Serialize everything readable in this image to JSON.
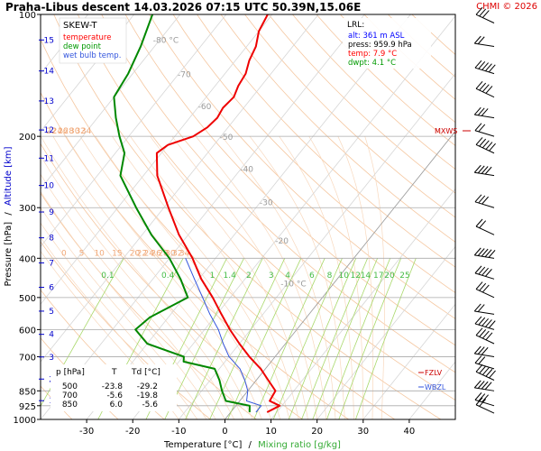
{
  "header": {
    "title": "Praha-Libus   descent   14.03.2026 07:15 UTC   50.39N,15.06E",
    "copyright": "CHMI © 2026"
  },
  "legend": {
    "title": "SKEW-T",
    "items": [
      {
        "label": "temperature",
        "color": "#ff0000"
      },
      {
        "label": "dew point",
        "color": "#009900"
      },
      {
        "label": "wet bulb temp.",
        "color": "#3355dd"
      }
    ]
  },
  "lrl": {
    "title": "LRL:",
    "alt": "alt: 361 m ASL",
    "press": "press: 959.9 hPa",
    "temp": "temp: 7.9 °C",
    "dwpt": "dwpt: 4.1 °C",
    "temp_color": "#ff0000",
    "dwpt_color": "#009900",
    "alt_color": "#0000ff"
  },
  "table": {
    "headers": [
      "p [hPa]",
      "T",
      "Td [°C]"
    ],
    "rows": [
      [
        "500",
        "-23.8",
        "-29.2"
      ],
      [
        "700",
        "-5.6",
        "-19.8"
      ],
      [
        "850",
        "6.0",
        "-5.6"
      ]
    ]
  },
  "axes": {
    "ylabel_pressure": "Pressure [hPa]",
    "ylabel_sep": "/",
    "ylabel_alt": "Altitude [km]",
    "xlabel_temp": "Temperature [°C]",
    "xlabel_sep": "/",
    "xlabel_mix": "Mixing ratio [g/kg]"
  },
  "markers": {
    "mxws": "MXWS",
    "fzlv": "FZLV",
    "wbzl": "WBZL"
  },
  "chart_data": {
    "type": "line",
    "xlim": [
      -40,
      50
    ],
    "ylim_hpa": [
      1000,
      100
    ],
    "y_scale": "log",
    "x_ticks": [
      -30,
      -20,
      -10,
      0,
      10,
      20,
      30,
      40
    ],
    "pressure_ticks": [
      100,
      200,
      300,
      400,
      500,
      600,
      700,
      850,
      925,
      1000
    ],
    "altitude_ticks_km": [
      1,
      2,
      3,
      4,
      5,
      6,
      7,
      8,
      9,
      10,
      11,
      12,
      13,
      14,
      15
    ],
    "mixing_ratio_labels": [
      "0.1",
      "0.4",
      "1",
      "1.4",
      "2",
      "3",
      "4",
      "6",
      "8",
      "10",
      "12",
      "14",
      "17",
      "20",
      "25"
    ],
    "adiabat_labels_upper": [
      "0",
      "5",
      "10",
      "15",
      "20",
      "22",
      "24",
      "26",
      "28",
      "30",
      "32",
      "34"
    ],
    "adiabat_labels_lower": [
      "-10",
      "-5",
      "0",
      "5",
      "10",
      "15",
      "20",
      "22",
      "24",
      "26",
      "28",
      "30",
      "32",
      "34"
    ],
    "isotherm_labels": [
      "-80 °C",
      "-70",
      "-60",
      "-50",
      "-40",
      "-30",
      "-20",
      "-10 °C"
    ],
    "series": [
      {
        "name": "temperature",
        "points": [
          [
            960,
            7.9
          ],
          [
            925,
            9.5
          ],
          [
            900,
            6.5
          ],
          [
            850,
            6.0
          ],
          [
            800,
            2.6
          ],
          [
            750,
            -1.0
          ],
          [
            700,
            -5.6
          ],
          [
            650,
            -10.0
          ],
          [
            600,
            -14.5
          ],
          [
            550,
            -19.0
          ],
          [
            500,
            -23.8
          ],
          [
            450,
            -29.5
          ],
          [
            400,
            -35.0
          ],
          [
            350,
            -42.0
          ],
          [
            300,
            -49.0
          ],
          [
            250,
            -57.0
          ],
          [
            220,
            -61.0
          ],
          [
            210,
            -60.0
          ],
          [
            200,
            -56.0
          ],
          [
            190,
            -54.5
          ],
          [
            180,
            -54.0
          ],
          [
            170,
            -54.5
          ],
          [
            160,
            -54.0
          ],
          [
            150,
            -55.0
          ],
          [
            140,
            -55.5
          ],
          [
            130,
            -57.0
          ],
          [
            120,
            -58.0
          ],
          [
            110,
            -60.0
          ],
          [
            100,
            -61.0
          ]
        ]
      },
      {
        "name": "dew point",
        "points": [
          [
            960,
            4.1
          ],
          [
            925,
            3.0
          ],
          [
            900,
            -3.0
          ],
          [
            850,
            -5.6
          ],
          [
            800,
            -8.0
          ],
          [
            750,
            -11.0
          ],
          [
            720,
            -19.0
          ],
          [
            700,
            -19.8
          ],
          [
            650,
            -30.0
          ],
          [
            600,
            -35.0
          ],
          [
            560,
            -34.0
          ],
          [
            500,
            -29.2
          ],
          [
            450,
            -34.0
          ],
          [
            400,
            -40.0
          ],
          [
            350,
            -48.0
          ],
          [
            300,
            -56.0
          ],
          [
            250,
            -65.0
          ],
          [
            220,
            -68.0
          ],
          [
            200,
            -72.0
          ],
          [
            180,
            -76.0
          ],
          [
            160,
            -80.0
          ],
          [
            140,
            -81.0
          ],
          [
            120,
            -83.0
          ],
          [
            100,
            -86.0
          ]
        ]
      },
      {
        "name": "wet bulb temp.",
        "points": [
          [
            960,
            5.5
          ],
          [
            925,
            5.5
          ],
          [
            900,
            1.5
          ],
          [
            850,
            0.0
          ],
          [
            800,
            -2.5
          ],
          [
            750,
            -5.5
          ],
          [
            700,
            -10.0
          ],
          [
            650,
            -13.5
          ],
          [
            600,
            -17.0
          ],
          [
            550,
            -21.5
          ],
          [
            500,
            -26.0
          ],
          [
            450,
            -31.0
          ],
          [
            400,
            -36.5
          ]
        ]
      }
    ]
  }
}
